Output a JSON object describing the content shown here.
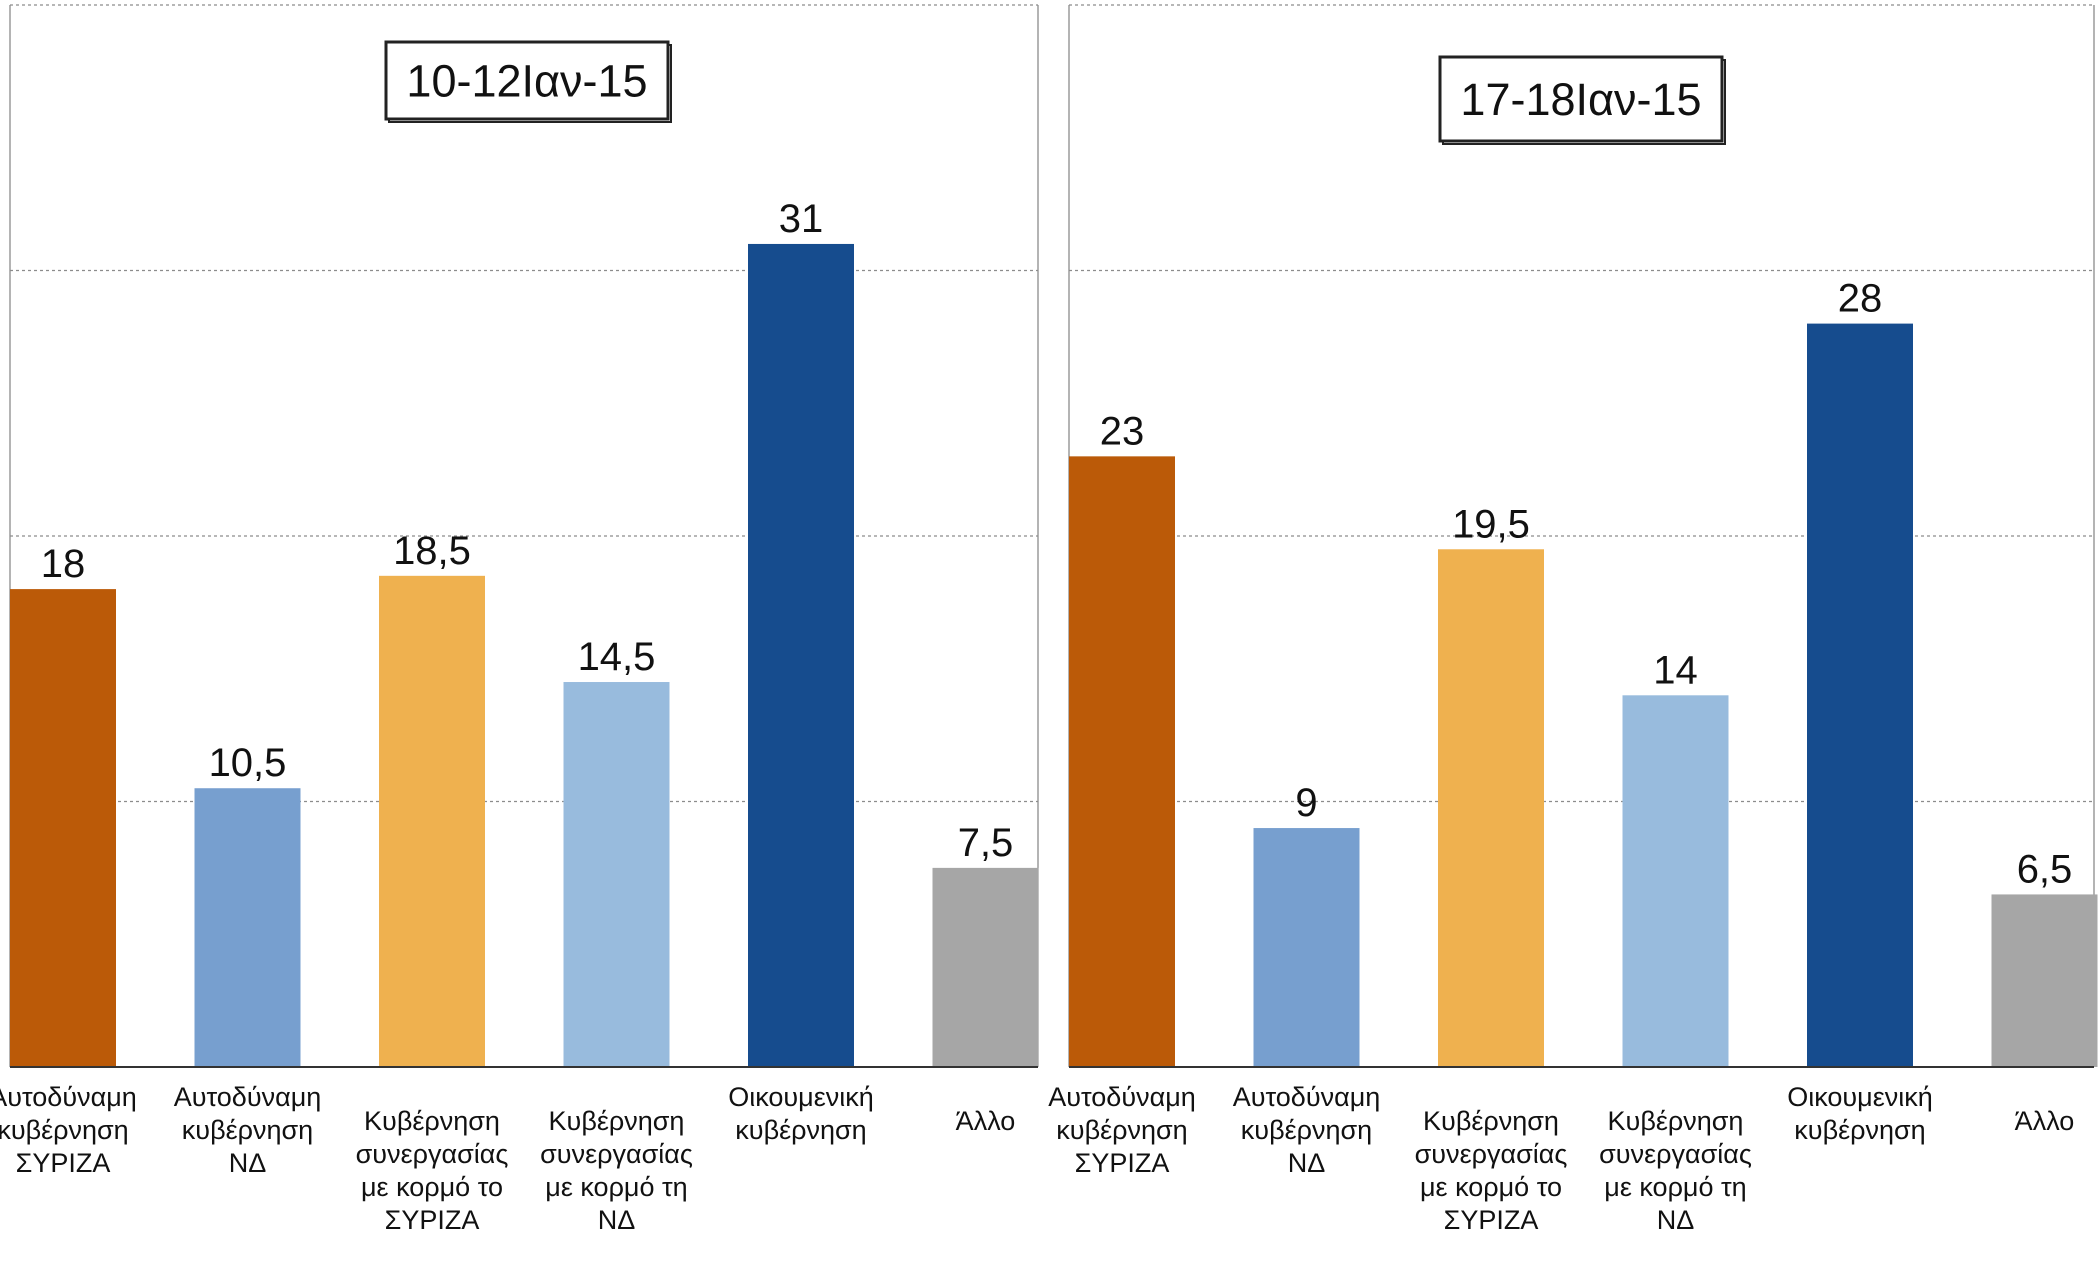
{
  "chart_data": [
    {
      "type": "bar",
      "title": "10-12Ιαν-15",
      "categories": [
        [
          "Αυτοδύναμη",
          "κυβέρνηση",
          "ΣΥΡΙΖΑ"
        ],
        [
          "Αυτοδύναμη",
          "κυβέρνηση",
          "ΝΔ"
        ],
        [
          "Κυβέρνηση",
          "συνεργασίας",
          "με κορμό το",
          "ΣΥΡΙΖΑ"
        ],
        [
          "Κυβέρνηση",
          "συνεργασίας",
          "με κορμό τη",
          "ΝΔ"
        ],
        [
          "Οικουμενική",
          "κυβέρνηση"
        ],
        [
          "Άλλο"
        ]
      ],
      "values": [
        18,
        10.5,
        18.5,
        14.5,
        31,
        7.5
      ],
      "value_labels": [
        "18",
        "10,5",
        "18,5",
        "14,5",
        "31",
        "7,5"
      ],
      "colors": [
        "#bb5a08",
        "#779fcf",
        "#efb14f",
        "#98bbdd",
        "#164c8e",
        "#a6a6a6"
      ],
      "ylim": [
        0,
        40
      ],
      "grid": true,
      "xlabel": "",
      "ylabel": ""
    },
    {
      "type": "bar",
      "title": "17-18Ιαν-15",
      "categories": [
        [
          "Αυτοδύναμη",
          "κυβέρνηση",
          "ΣΥΡΙΖΑ"
        ],
        [
          "Αυτοδύναμη",
          "κυβέρνηση",
          "ΝΔ"
        ],
        [
          "Κυβέρνηση",
          "συνεργασίας",
          "με κορμό το",
          "ΣΥΡΙΖΑ"
        ],
        [
          "Κυβέρνηση",
          "συνεργασίας",
          "με κορμό τη",
          "ΝΔ"
        ],
        [
          "Οικουμενική",
          "κυβέρνηση"
        ],
        [
          "Άλλο"
        ]
      ],
      "values": [
        23,
        9,
        19.5,
        14,
        28,
        6.5
      ],
      "value_labels": [
        "23",
        "9",
        "19,5",
        "14",
        "28",
        "6,5"
      ],
      "colors": [
        "#bb5a08",
        "#779fcf",
        "#efb14f",
        "#98bbdd",
        "#164c8e",
        "#a6a6a6"
      ],
      "ylim": [
        0,
        40
      ],
      "grid": true,
      "xlabel": "",
      "ylabel": ""
    }
  ]
}
